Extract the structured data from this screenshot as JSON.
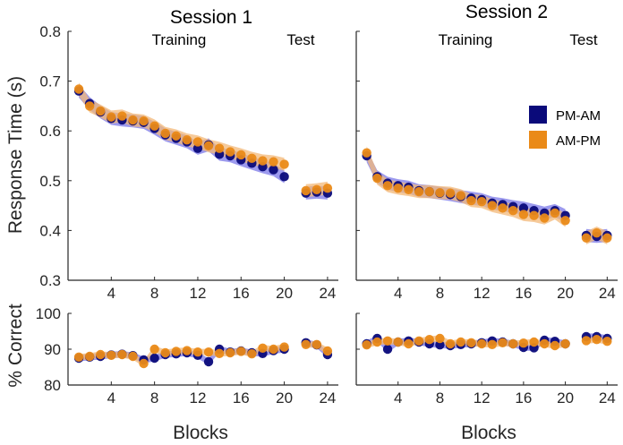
{
  "colors": {
    "pm_am": "#0a0a7a",
    "am_pm": "#ea8a18",
    "pm_am_band": "#7b78e8",
    "am_pm_band": "#f3b878"
  },
  "chart_data": [
    {
      "id": "rt-s1",
      "type": "scatter",
      "title": "Session 1",
      "phase_labels": {
        "training": "Training",
        "test": "Test"
      },
      "ylabel": "Response Time (s)",
      "ylim": [
        0.3,
        0.8
      ],
      "yticks": [
        "0.3",
        "0.4",
        "0.5",
        "0.6",
        "0.7",
        "0.8"
      ],
      "xlim": [
        0,
        25
      ],
      "xticks": [
        "4",
        "8",
        "12",
        "16",
        "20",
        "24"
      ],
      "legend": [
        "PM-AM",
        "AM-PM"
      ],
      "band_halfwidth": 0.013,
      "series": [
        {
          "name": "PM-AM",
          "x": [
            1,
            2,
            3,
            4,
            5,
            6,
            7,
            8,
            9,
            10,
            11,
            12,
            13,
            14,
            15,
            16,
            17,
            18,
            19,
            20,
            22,
            23,
            24
          ],
          "values": [
            0.68,
            0.655,
            0.638,
            0.625,
            0.622,
            0.62,
            0.617,
            0.605,
            0.592,
            0.585,
            0.578,
            0.565,
            0.572,
            0.553,
            0.55,
            0.542,
            0.535,
            0.528,
            0.522,
            0.508,
            0.475,
            0.477,
            0.475
          ]
        },
        {
          "name": "AM-PM",
          "x": [
            1,
            2,
            3,
            4,
            5,
            6,
            7,
            8,
            9,
            10,
            11,
            12,
            13,
            14,
            15,
            16,
            17,
            18,
            19,
            20,
            22,
            23,
            24
          ],
          "values": [
            0.684,
            0.65,
            0.64,
            0.628,
            0.63,
            0.622,
            0.62,
            0.61,
            0.595,
            0.59,
            0.582,
            0.578,
            0.57,
            0.565,
            0.558,
            0.552,
            0.545,
            0.54,
            0.538,
            0.533,
            0.48,
            0.482,
            0.485
          ]
        }
      ]
    },
    {
      "id": "rt-s2",
      "type": "scatter",
      "title": "Session 2",
      "phase_labels": {
        "training": "Training",
        "test": "Test"
      },
      "ylim": [
        0.3,
        0.8
      ],
      "xlim": [
        0,
        25
      ],
      "xticks": [
        "4",
        "8",
        "12",
        "16",
        "20",
        "24"
      ],
      "band_halfwidth": 0.013,
      "series": [
        {
          "name": "PM-AM",
          "x": [
            1,
            2,
            3,
            4,
            5,
            6,
            7,
            8,
            9,
            10,
            11,
            12,
            13,
            14,
            15,
            16,
            17,
            18,
            19,
            20,
            22,
            23,
            24
          ],
          "values": [
            0.55,
            0.508,
            0.495,
            0.49,
            0.487,
            0.48,
            0.478,
            0.475,
            0.472,
            0.468,
            0.465,
            0.462,
            0.455,
            0.452,
            0.448,
            0.445,
            0.44,
            0.435,
            0.44,
            0.43,
            0.39,
            0.388,
            0.39
          ]
        },
        {
          "name": "AM-PM",
          "x": [
            1,
            2,
            3,
            4,
            5,
            6,
            7,
            8,
            9,
            10,
            11,
            12,
            13,
            14,
            15,
            16,
            17,
            18,
            19,
            20,
            22,
            23,
            24
          ],
          "values": [
            0.556,
            0.505,
            0.49,
            0.485,
            0.482,
            0.478,
            0.478,
            0.476,
            0.475,
            0.47,
            0.46,
            0.458,
            0.45,
            0.445,
            0.44,
            0.432,
            0.43,
            0.425,
            0.435,
            0.42,
            0.385,
            0.395,
            0.385
          ]
        }
      ]
    },
    {
      "id": "acc-s1",
      "type": "scatter",
      "ylabel": "% Correct",
      "ylim": [
        80,
        100
      ],
      "yticks": [
        "80",
        "90",
        "100"
      ],
      "xlabel": "Blocks",
      "xlim": [
        0,
        25
      ],
      "xticks": [
        "4",
        "8",
        "12",
        "16",
        "20",
        "24"
      ],
      "band_halfwidth": 0.9,
      "series": [
        {
          "name": "PM-AM",
          "x": [
            1,
            2,
            3,
            4,
            5,
            6,
            7,
            8,
            9,
            10,
            11,
            12,
            13,
            14,
            15,
            16,
            17,
            18,
            19,
            20,
            22,
            23,
            24
          ],
          "values": [
            87.5,
            87.8,
            88.0,
            88.4,
            88.6,
            88.2,
            87.0,
            87.5,
            88.5,
            88.7,
            89.0,
            88.3,
            86.5,
            90.0,
            89.2,
            89.5,
            89.0,
            88.8,
            89.6,
            90.0,
            91.8,
            91.2,
            88.5
          ]
        },
        {
          "name": "AM-PM",
          "x": [
            1,
            2,
            3,
            4,
            5,
            6,
            7,
            8,
            9,
            10,
            11,
            12,
            13,
            14,
            15,
            16,
            17,
            18,
            19,
            20,
            22,
            23,
            24
          ],
          "values": [
            87.8,
            88.0,
            88.5,
            88.3,
            88.5,
            88.0,
            86.0,
            90.0,
            89.0,
            89.4,
            89.6,
            89.2,
            89.2,
            88.8,
            89.0,
            89.4,
            88.7,
            90.3,
            90.0,
            90.6,
            91.3,
            91.3,
            89.5
          ]
        }
      ]
    },
    {
      "id": "acc-s2",
      "type": "scatter",
      "ylim": [
        80,
        100
      ],
      "xlabel": "Blocks",
      "xlim": [
        0,
        25
      ],
      "xticks": [
        "4",
        "8",
        "12",
        "16",
        "20",
        "24"
      ],
      "band_halfwidth": 0.9,
      "series": [
        {
          "name": "PM-AM",
          "x": [
            1,
            2,
            3,
            4,
            5,
            6,
            7,
            8,
            9,
            10,
            11,
            12,
            13,
            14,
            15,
            16,
            17,
            18,
            19,
            20,
            22,
            23,
            24
          ],
          "values": [
            91.5,
            93.0,
            90.0,
            92.0,
            92.3,
            92.0,
            91.5,
            91.2,
            91.0,
            91.3,
            91.5,
            91.8,
            92.3,
            92.0,
            91.5,
            90.5,
            90.4,
            92.5,
            92.2,
            91.5,
            93.5,
            93.5,
            93.0
          ]
        },
        {
          "name": "AM-PM",
          "x": [
            1,
            2,
            3,
            4,
            5,
            6,
            7,
            8,
            9,
            10,
            11,
            12,
            13,
            14,
            15,
            16,
            17,
            18,
            19,
            20,
            22,
            23,
            24
          ],
          "values": [
            91.2,
            92.0,
            92.3,
            92.0,
            91.5,
            92.3,
            92.7,
            93.0,
            91.5,
            92.0,
            91.8,
            91.5,
            91.3,
            91.8,
            91.5,
            91.7,
            92.0,
            91.5,
            91.0,
            91.5,
            92.4,
            92.7,
            92.2
          ]
        }
      ]
    }
  ]
}
